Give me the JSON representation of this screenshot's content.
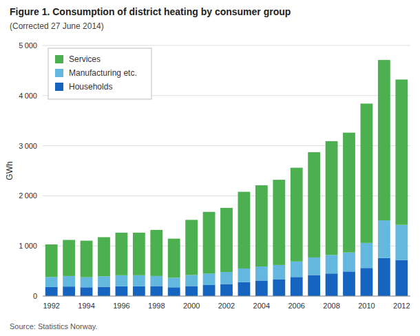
{
  "chart_data": {
    "type": "bar",
    "stacked": true,
    "title": "Figure 1. Consumption of district heating by consumer group",
    "subtitle": "(Corrected 27 June 2014)",
    "y_label": "GWh",
    "source": "Source: Statistics Norway.",
    "categories": [
      "1992",
      null,
      "1994",
      null,
      "1996",
      null,
      "1998",
      null,
      "2000",
      null,
      "2002",
      null,
      "2004",
      null,
      "2006",
      null,
      "2008",
      null,
      "2010",
      null,
      "2012"
    ],
    "series": [
      {
        "name": "Services",
        "color": "#4CAF50",
        "values": [
          650,
          720,
          730,
          780,
          850,
          850,
          920,
          780,
          1100,
          1230,
          1280,
          1530,
          1620,
          1700,
          1870,
          2100,
          2270,
          2390,
          2780,
          3200,
          2900
        ]
      },
      {
        "name": "Manufacturing etc.",
        "color": "#64B8E0",
        "values": [
          200,
          210,
          200,
          210,
          220,
          220,
          200,
          190,
          220,
          230,
          240,
          270,
          280,
          290,
          310,
          350,
          370,
          380,
          500,
          750,
          700
        ]
      },
      {
        "name": "Households",
        "color": "#1565C0",
        "values": [
          180,
          190,
          175,
          185,
          195,
          195,
          200,
          175,
          200,
          220,
          240,
          280,
          310,
          330,
          380,
          420,
          450,
          490,
          560,
          760,
          720
        ]
      }
    ],
    "ylim": [
      0,
      5000
    ],
    "yticks": [
      0,
      {
        "value": 1000,
        "label": "1 000"
      },
      {
        "value": 2000,
        "label": "2 000"
      },
      {
        "value": 3000,
        "label": "3 000"
      },
      {
        "value": 4000,
        "label": "4 000"
      },
      {
        "value": 5000,
        "label": "5 000"
      }
    ],
    "grid": true,
    "legend": "upper-left"
  }
}
